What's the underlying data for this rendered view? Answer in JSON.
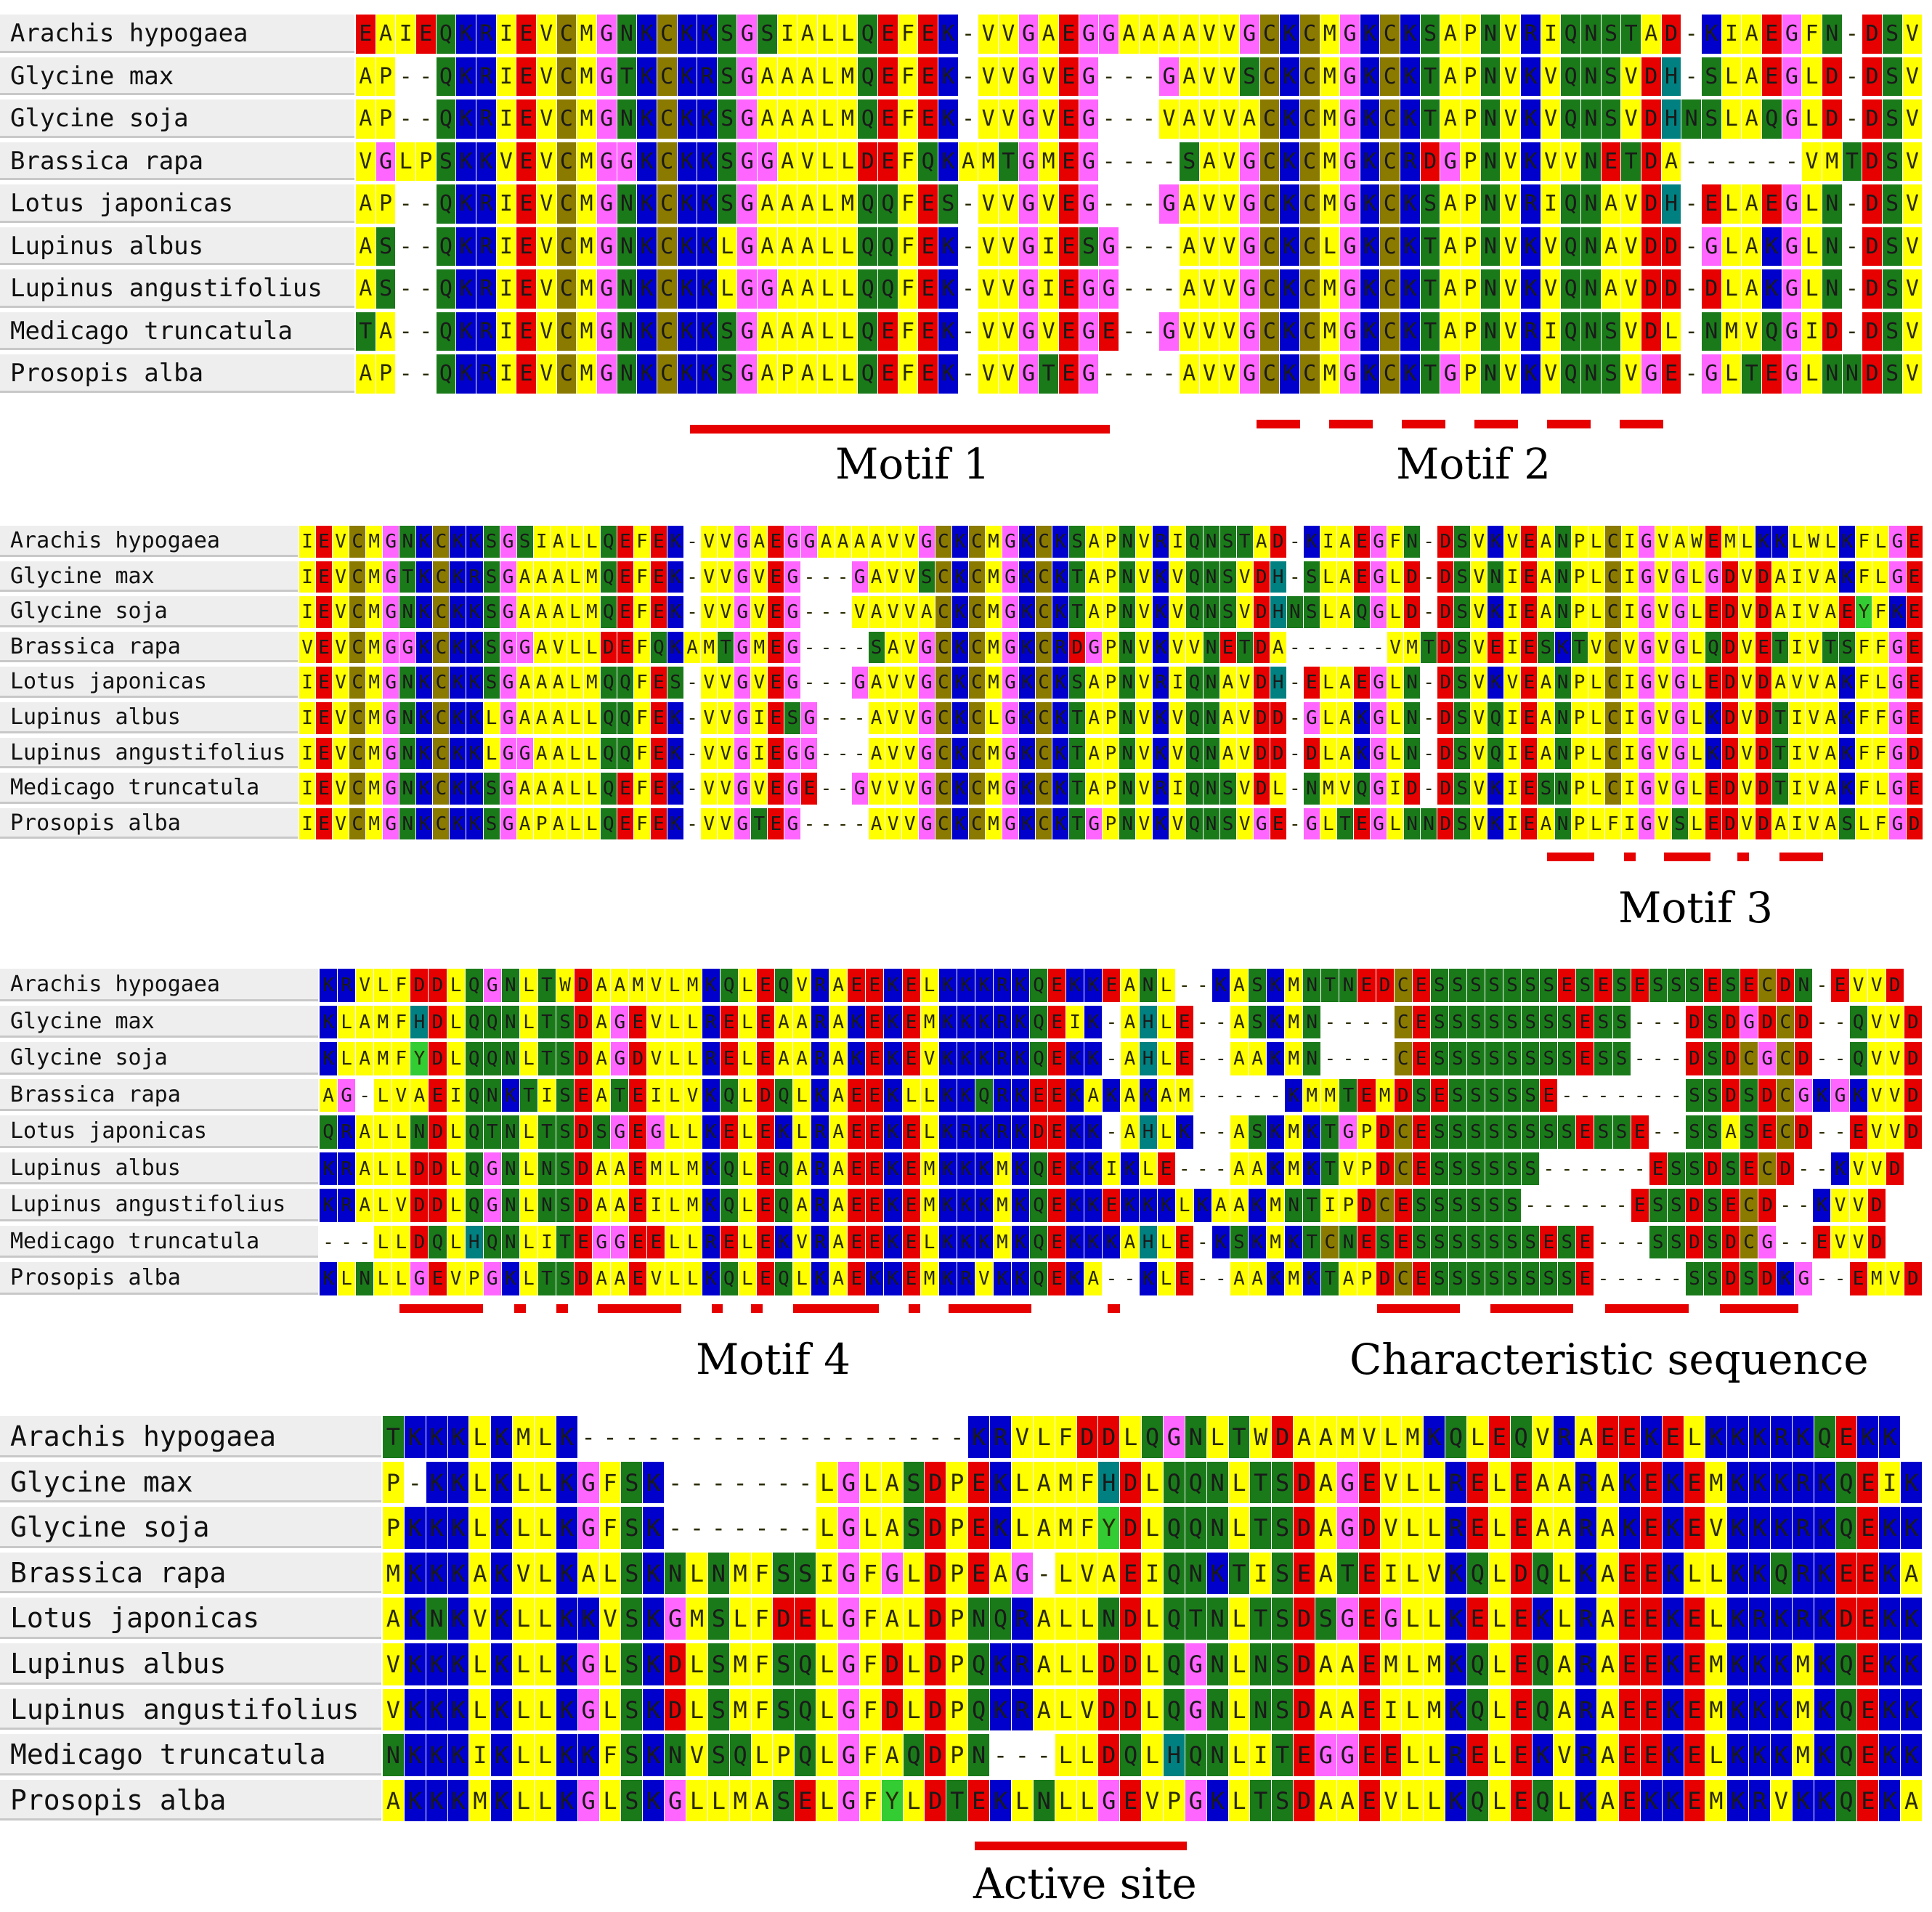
{
  "colors": {
    "A": "#ffff00",
    "V": "#ffff00",
    "L": "#ffff00",
    "I": "#ffff00",
    "M": "#ffff00",
    "F": "#ffff00",
    "P": "#ffff00",
    "W": "#ffff00",
    "G": "#ff66ff",
    "C": "#8b7a00",
    "S": "#1a7a1a",
    "T": "#1a7a1a",
    "N": "#1a7a1a",
    "Q": "#1a7a1a",
    "Y": "#33cc33",
    "H": "#008080",
    "K": "#0000cc",
    "R": "#0000cc",
    "D": "#e60000",
    "E": "#e60000",
    "-": "#ffffff",
    "line": "#e60000"
  },
  "species": [
    "Arachis hypogaea",
    "Glycine max",
    "Glycine soja",
    "Brassica rapa",
    "Lotus japonicas",
    "Lupinus albus",
    "Lupinus angustifolius",
    "Medicago truncatula",
    "Prosopis alba"
  ],
  "panels": [
    {
      "sequences": [
        "EAIEQKRIEVCMGNKCKKSGSIALLQEFEK-VVGAEGGAAAAVVGCKCMGKCKSAPNVRIQNSTAD-KIAEGFN-DSV",
        "AP--QKRIEVCMGTKCKRSGAAALMQEFEK-VVGVEG---GAVVSCKCMGKCKTAPNVKVQNSVDH-SLAEGLD-DSV",
        "AP--QKRIEVCMGNKCKKSGAAALMQEFEK-VVGVEG---VAVVACKCMGKCKTAPNVKVQNSVDHNSLAQGLD-DSV",
        "VGLPSKKVEVCMGGKCKKSGGAVLLDEFQKAMTGMEG----SAVGCKCMGKCRDGPNVKVVNETDA------VMTDSV",
        "AP--QKRIEVCMGNKCKKSGAAALMQQFES-VVGVEG---GAVVGCKCMGKCKSAPNVRIQNAVDH-ELAEGLN-DSV",
        "AS--QKRIEVCMGNKCKKLGAAALLQQFEK-VVGIESG---AVVGCKCLGKCKTAPNVKVQNAVDD-GLAKGLN-DSV",
        "AS--QKRIEVCMGNKCKKLGGAALLQQFEK-VVGIEGG---AVVGCKCMGKCKTAPNVKVQNAVDD-DLAKGLN-DSV",
        "TA--QKRIEVCMGNKCKKSGAAALLQEFEK-VVGVEGE--GVVVGCKCMGKCKTAPNVRIQNSVDL-NMVQGID-DSV",
        "AP--QKRIEVCMGNKCKKSGAPALLQEFEK-VVGTEG----AVVGCKCMGKCKTGPNVKVQNSVGE-GLTEGLNNDSV"
      ],
      "motifs": [
        {
          "label": "Motif 1"
        },
        {
          "label": "Motif 2"
        }
      ]
    },
    {
      "sequences": [
        "IEVCMGNKCKKSGSIALLQEFEK-VVGAEGGAAAAVVGCKCMGKCKSAPNVRIQNSTAD-KIAEGFN-DSVKVEANPLCIGVAWEMLKKLWLKFLGE",
        "IEVCMGTKCKRSGAAALMQEFEK-VVGVEG---GAVVSCKCMGKCKTAPNVKVQNSVDH-SLAEGLD-DSVNIEANPLCIGVGLGDVDAIVAKFLGE",
        "IEVCMGNKCKKSGAAALMQEFEK-VVGVEG---VAVVACKCMGKCKTAPNVKVQNSVDHNSLAQGLD-DSVKIEANPLCIGVGLEDVDAIVAEYFKE",
        "VEVCMGGKCKKSGGAVLLDEFQKAMTGMEG----SAVGCKCMGKCRDGPNVKVVNETDA------VMTDSVEIESKTVCVGVGLQDVETIVTSFFGE",
        "IEVCMGNKCKKSGAAALMQQFES-VVGVEG---GAVVGCKCMGKCKSAPNVRIQNAVDH-ELAEGLN-DSVKVEANPLCIGVGLEDVDAVVAKFLGE",
        "IEVCMGNKCKKLGAAALLQQFEK-VVGIESG---AVVGCKCLGKCKTAPNVKVQNAVDD-GLAKGLN-DSVQIEANPLCIGVGLKDVDTIVAKFFGE",
        "IEVCMGNKCKKLGGAALLQQFEK-VVGIEGG---AVVGCKCMGKCKTAPNVKVQNAVDD-DLAKGLN-DSVQIEANPLCIGVGLKDVDTIVAKFFGD",
        "IEVCMGNKCKKSGAAALLQEFEK-VVGVEGE--GVVVGCKCMGKCKTAPNVRIQNSVDL-NMVQGID-DSVKIESNPLCIGVGLEDVDTIVAKFLGE",
        "IEVCMGNKCKKSGAPALLQEFEK-VVGTEG----AVVGCKCMGKCKTGPNVKVQNSVGE-GLTEGLNNDSVKIEANPLFIGVSLEDVDAIVASLFGD"
      ],
      "motifs": [
        {
          "label": "Motif 3"
        }
      ]
    },
    {
      "sequences": [
        "KRVLFDDLQGNLTWDAAMVLMKQLEQVRAEEKELKKKRKQEKKEANL--KASKMNTNEDCESSSSSSSESESESSSESECDN-EVVD",
        "KLAMFHDLQQNLTSDAGEVLLRELEAARAKEKEMKKKRKQEIK-AHLE--ASKMN----CESSSSSSSSESS---DSDGDCD--QVVD",
        "KLAMFYDLQQNLTSDAGDVLLRELEAARAKEKEVKKKRKQEKK-AHLE--AAKMN----CESSSSSSSSESS---DSDCGCD--QVVD",
        "AG-LVAEIQNKTISEATEILVKQLDQLKAEEKLLKKQRKEEKAKAKAM-----KMMTEMDSESSSSSE-------SSDSDCGKGKVVD",
        "QRALLNDLQTNLTSDSGEGLLKELEKLRAEEKELKRKRKDEKK-AHLK--ASKMKTGPDCESSSSSSSSESSE--SSASECD--EVVD",
        "KRALLDDLQGNLNSDAAEMLMKQLEQARAEEKEMKKKMKQEKKIKLE---AAKMKTVPDCESSSSSS------ESSDSECD--KVVD",
        "KRALVDDLQGNLNSDAAEILMKQLEQARAEEKEMKKKMKQEKKEKKKLKAAKMNTIPDCESSSSSS------ESSDSECD--KVVD",
        "---LLDQLHQNLITEGGEELLRELEKVRAEEKELKKKMKQEKKKAHLE-KSKMKTCNESESSSSSSSESE---SSDSDCG--EVVD",
        "KLNLLGEVPGKLTSDAAEVLLKQLEQLKAEKKEMKRVKKQEKA--KLE--AAKMKTAPDCESSSSSSSSE-----SSDSDKG--EMVD"
      ],
      "motifs": [
        {
          "label": "Motif 4"
        },
        {
          "label": "Characteristic sequence"
        }
      ]
    },
    {
      "sequences": [
        "TKKKLKMLK------------------KRVLFDDLQGNLTWDAAMVLMKQLEQVRAEEKELKKKRKQEKK",
        "P-KKLKLLKGFSK-------LGLASDPEKLAMFHDLQQNLTSDAGEVLLRELEAARAKEKEMKKKRKQEIK",
        "PKKKLKLLKGFSK-------LGLASDPEKLAMFYDLQQNLTSDAGDVLLRELEAARAKEKEVKKKRKQEKK",
        "MKKKAKVLKALSKNLNMFSSIGFGLDPEAG-LVAEIQNKTISEATEILVKQLDQLKAEEKLLKKQRKEEKA",
        "AKNKVKLLKKVSKGMSLFDELGFALDPNQRALLNDLQTNLTSDSGEGLLKELEKLRAEEKELKRKRKDEKK",
        "VKKKLKLLKGLSKDLSMFSQLGFDLDPQKRALLDDLQGNLNSDAAEMLMKQLEQARAEEKEMKKKMKQEKK",
        "VKKKLKLLKGLSKDLSMFSQLGFDLDPQKRALVDDLQGNLNSDAAEILMKQLEQARAEEKEMKKKMKQEKK",
        "NKKKIKLLKKFSKNVSQLPQLGFAQDPN---LLDQLHQNLITEGGEELLRELEKVRAEEKELKKKMKQEKK",
        "AKKKMKLLKGLSKGLLMASELGFYLDTEKLNLLGEVPGKLTSDAAEVLLKQLEQLKAEKKEMKRVKKQEKA"
      ],
      "motifs": [
        {
          "label": "Active site"
        }
      ]
    }
  ]
}
